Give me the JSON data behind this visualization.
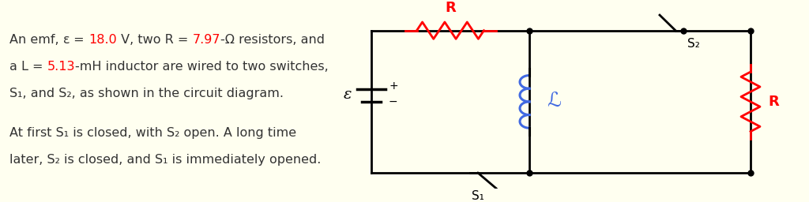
{
  "bg_color": "#FFFFF0",
  "text_color": "#333333",
  "red_color": "#FF0000",
  "blue_color": "#4169E1",
  "black_color": "#000000",
  "text1_line1": "An emf, ",
  "emf_sym": "ε",
  "text1_val": "18.0",
  "text1_mid1": " V, two R = ",
  "text1_val2": "7.97",
  "text1_mid2": "-Ω resistors, and",
  "text2_line1": "a L = ",
  "text2_val": "5.13",
  "text2_mid": "-mH inductor are wired to two switches,",
  "text3": "S₁, and S₂, as shown in the circuit diagram.",
  "text4": "At first S₁ is closed, with S₂ open. A long time",
  "text5": "later, S₂ is closed, and S₁ is immediately opened.",
  "fig_width": 10.24,
  "fig_height": 2.56,
  "dpi": 100
}
